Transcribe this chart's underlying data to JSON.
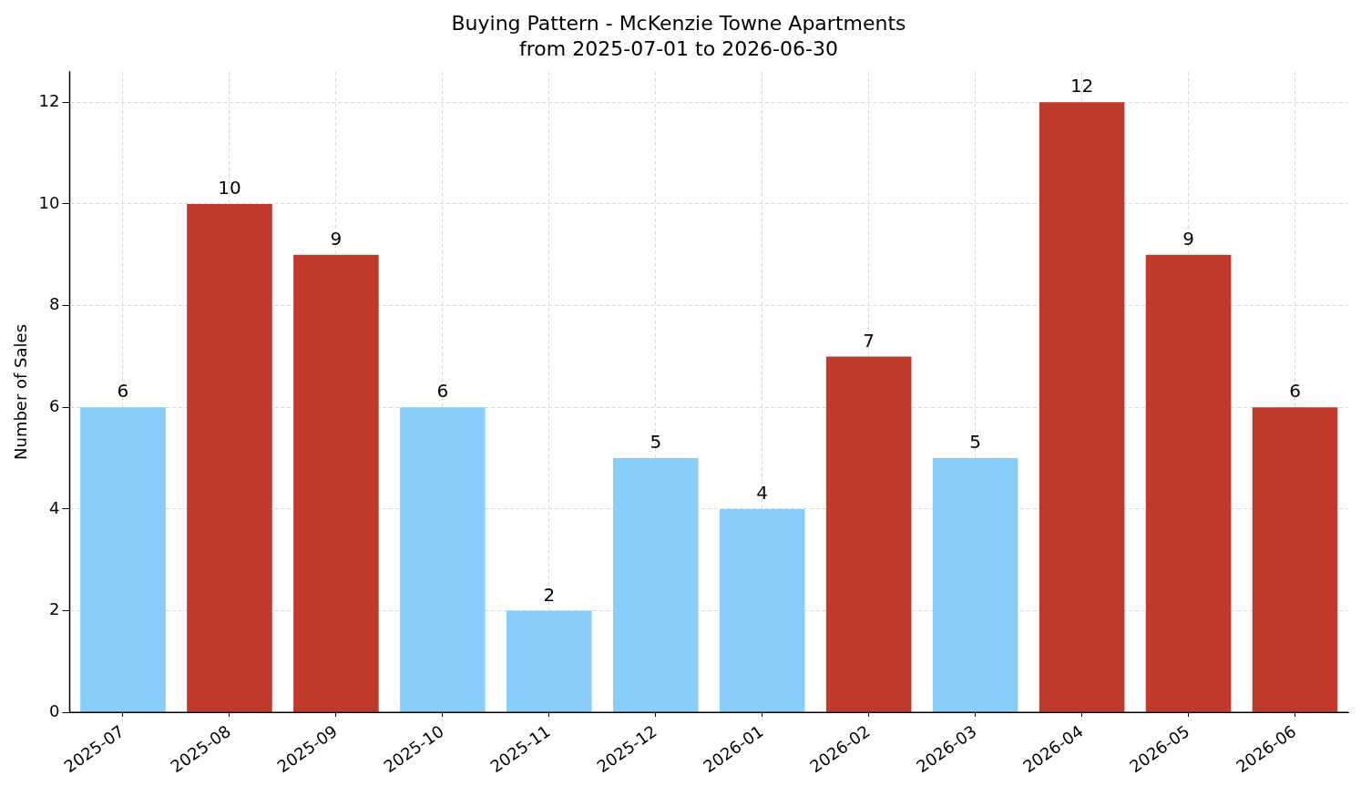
{
  "chart_data": {
    "type": "bar",
    "title": "Buying Pattern - McKenzie Towne Apartments",
    "subtitle": "from 2025-07-01 to 2026-06-30",
    "ylabel": "Number of Sales",
    "categories": [
      "2025-07",
      "2025-08",
      "2025-09",
      "2025-10",
      "2025-11",
      "2025-12",
      "2026-01",
      "2026-02",
      "2026-03",
      "2026-04",
      "2026-05",
      "2026-06"
    ],
    "values": [
      6,
      10,
      9,
      6,
      2,
      5,
      4,
      7,
      5,
      12,
      9,
      6
    ],
    "colors": [
      "#87cefa",
      "#c0392b",
      "#c0392b",
      "#87cefa",
      "#87cefa",
      "#87cefa",
      "#87cefa",
      "#c0392b",
      "#87cefa",
      "#c0392b",
      "#c0392b",
      "#c0392b"
    ],
    "ylim": [
      0,
      12.6
    ],
    "yticks": [
      0,
      2,
      4,
      6,
      8,
      10,
      12
    ],
    "grid": true,
    "data_labels": true
  }
}
